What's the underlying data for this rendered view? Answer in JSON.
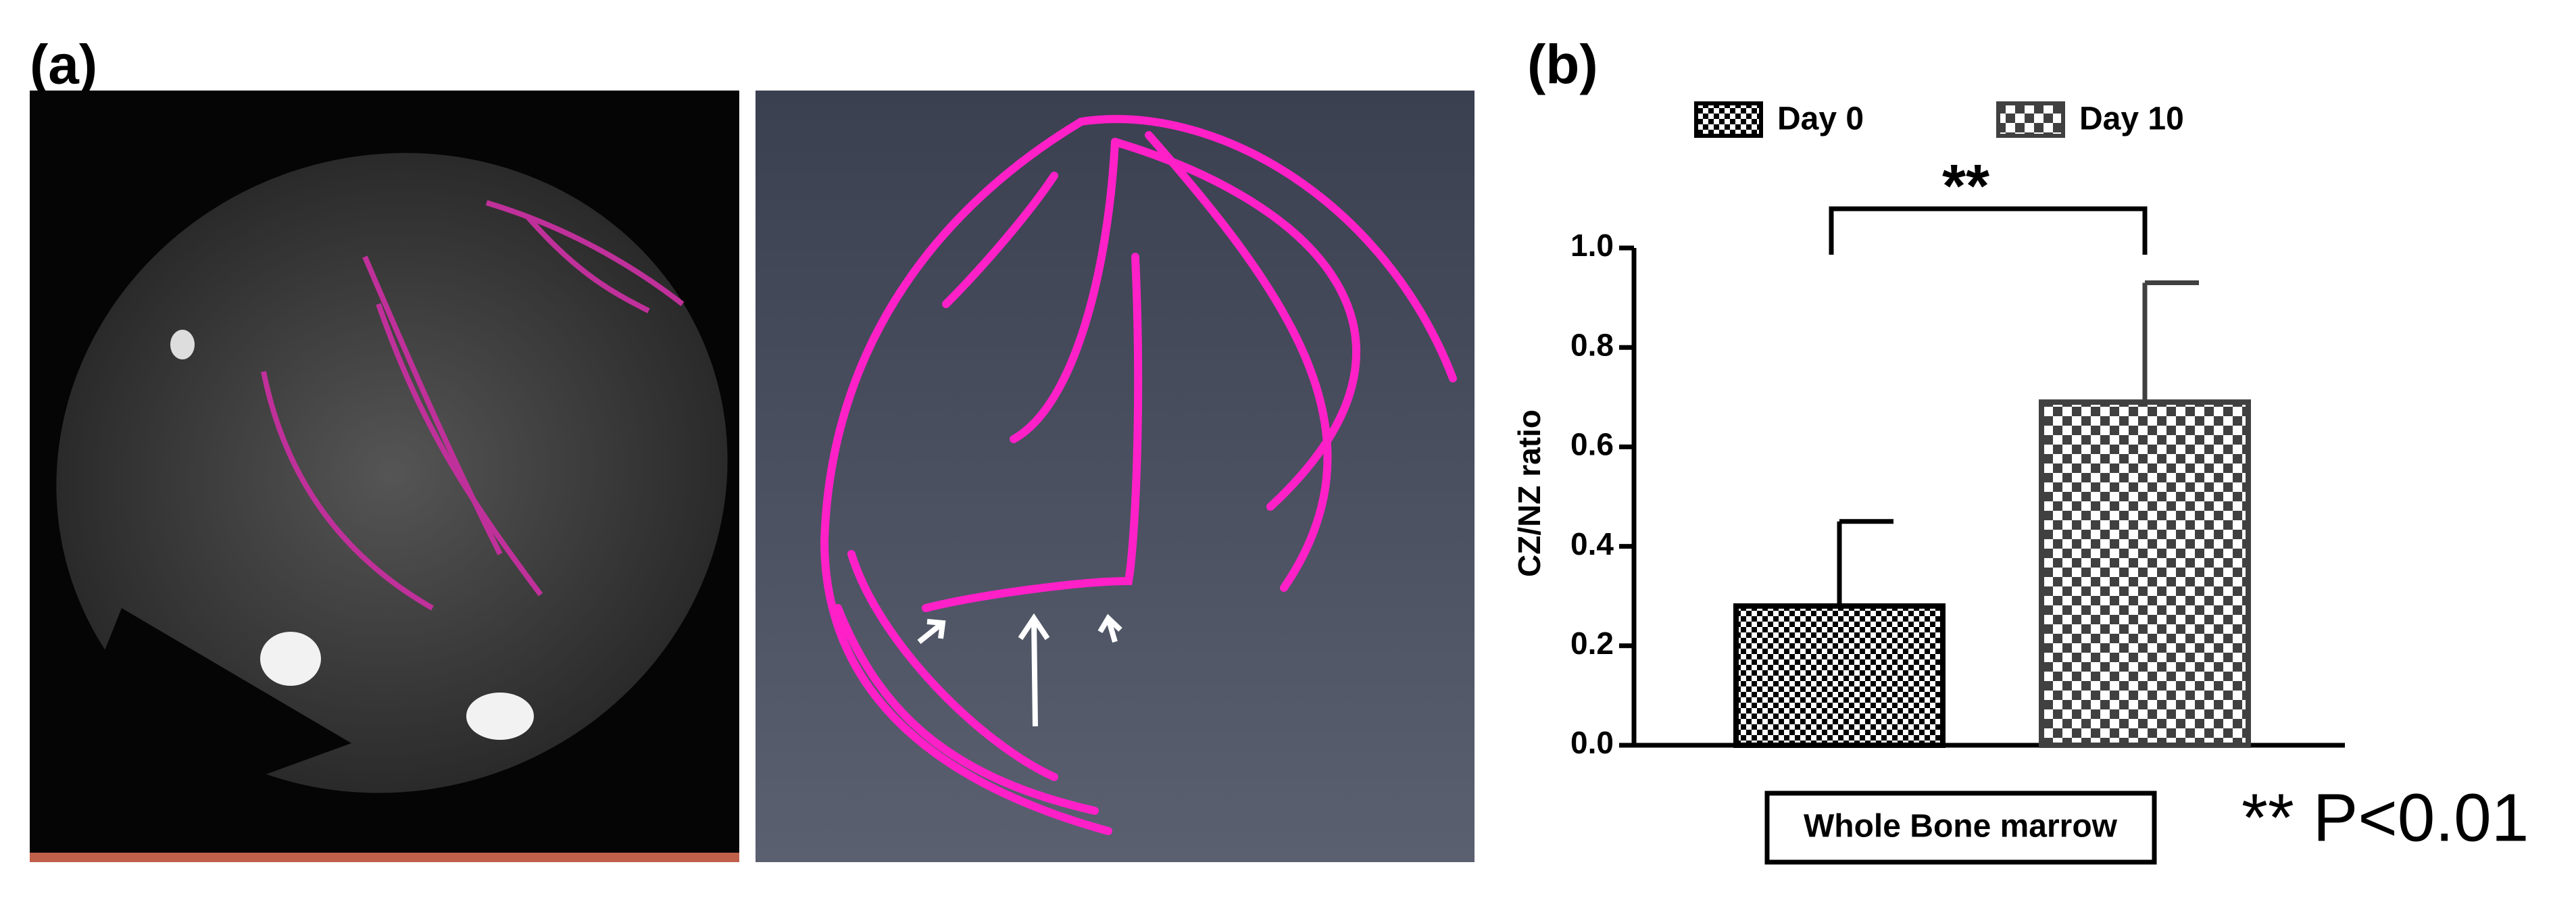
{
  "panel_labels": [
    "(a)",
    "(b)"
  ],
  "chart_data": {
    "type": "bar",
    "ylabel": "CZ/NZ ratio",
    "xlabel": "Whole Bone marrow",
    "series": [
      {
        "name": "Day 0",
        "color": "#000000",
        "values": [
          0.28
        ],
        "errors": [
          0.17
        ]
      },
      {
        "name": "Day 10",
        "color": "#404040",
        "values": [
          0.69
        ],
        "errors": [
          0.24
        ]
      }
    ],
    "ylim": [
      0,
      1
    ],
    "yticks": [
      {
        "value": 0,
        "label": "0.0"
      },
      0.2,
      0.4,
      0.6,
      0.8,
      {
        "value": 1,
        "label": "1.0"
      }
    ],
    "annotation": "**",
    "note": "** P<0.01"
  }
}
